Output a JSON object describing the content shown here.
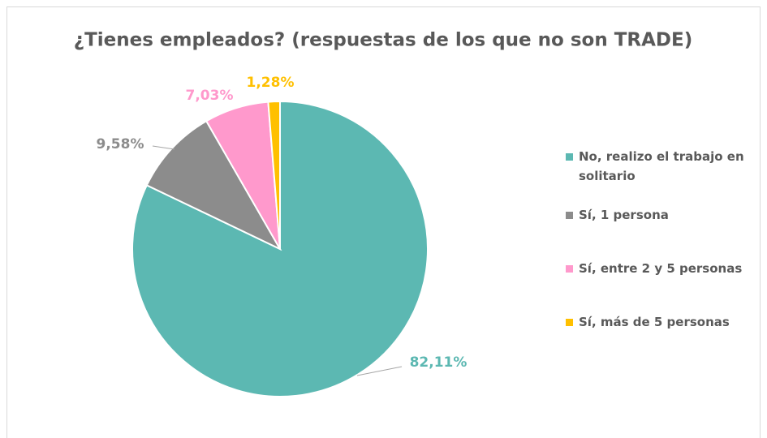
{
  "chart_data": {
    "type": "pie",
    "title": "¿Tienes empleados? (respuestas de los que no son TRADE)",
    "categories": [
      "No, realizo el trabajo en solitario",
      "Sí, 1 persona",
      "Sí, entre 2 y 5 personas",
      "Sí, más de 5 personas"
    ],
    "values": [
      82.11,
      9.58,
      7.03,
      1.28
    ],
    "value_labels": [
      "82,11%",
      "9,58%",
      "7,03%",
      "1,28%"
    ],
    "colors": [
      "#5cb8b2",
      "#8c8c8c",
      "#ff99cc",
      "#ffc000"
    ],
    "legend": "right"
  }
}
